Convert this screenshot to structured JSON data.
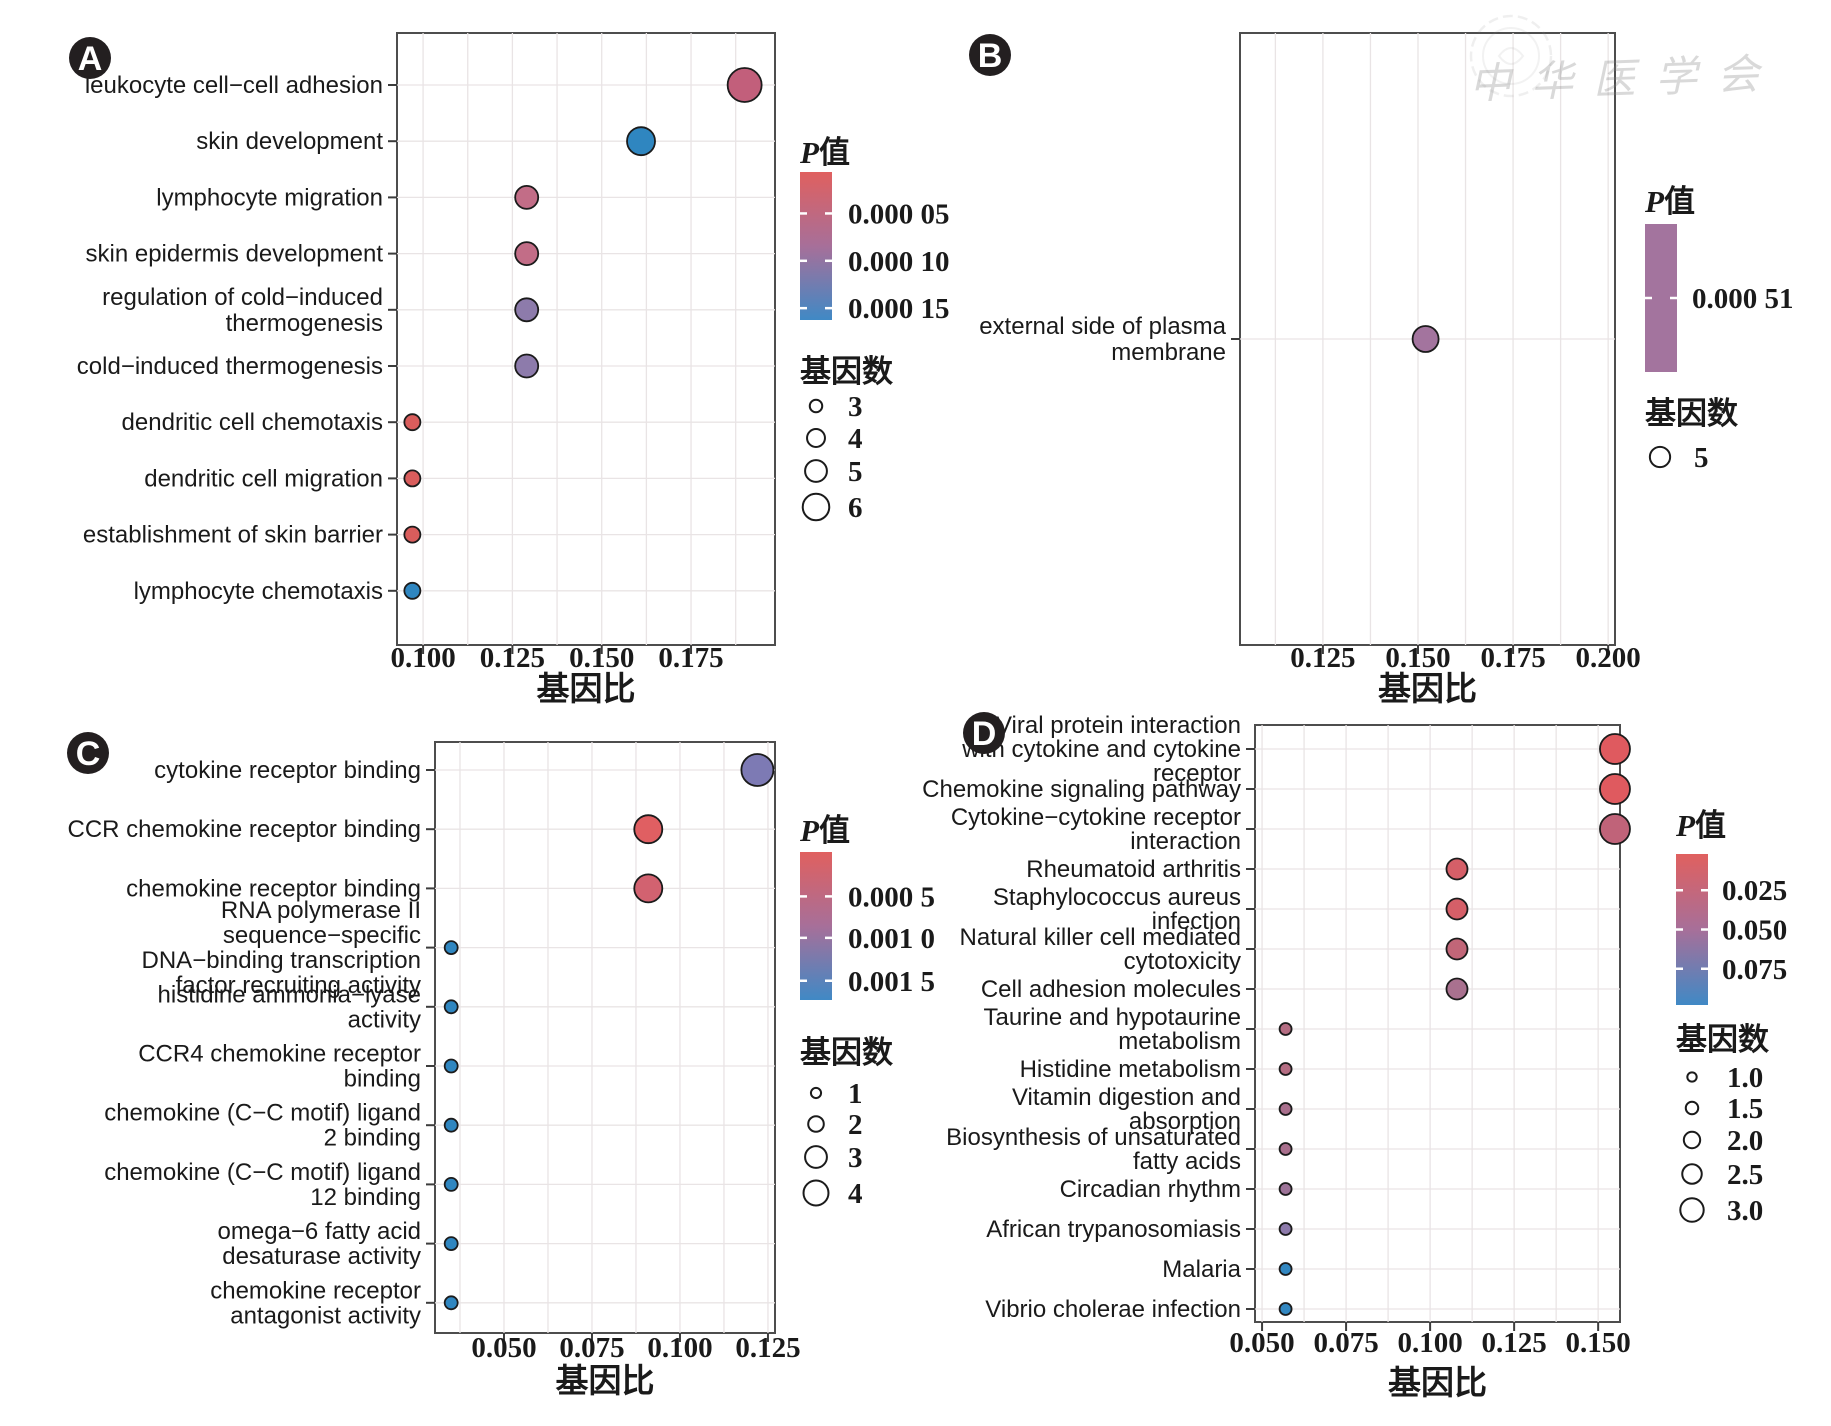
{
  "watermark": {
    "text": "中华医学会"
  },
  "chart_data": [
    {
      "panel": "A",
      "type": "scatter",
      "xlabel": "基因比",
      "xticks": [
        "0.100",
        "0.125",
        "0.150",
        "0.175"
      ],
      "xlim": [
        0.0927,
        0.1985
      ],
      "categories": [
        [
          "leukocyte cell−cell adhesion"
        ],
        [
          "skin development"
        ],
        [
          "lymphocyte migration"
        ],
        [
          "skin epidermis development"
        ],
        [
          "regulation of cold−induced",
          "thermogenesis"
        ],
        [
          "cold−induced thermogenesis"
        ],
        [
          "dendritic cell chemotaxis"
        ],
        [
          "dendritic cell migration"
        ],
        [
          "establishment of skin barrier"
        ],
        [
          "lymphocyte chemotaxis"
        ]
      ],
      "values": [
        0.19,
        0.161,
        0.129,
        0.129,
        0.129,
        0.129,
        0.097,
        0.097,
        0.097,
        0.097
      ],
      "sizes": [
        6,
        5,
        4,
        4,
        4,
        4,
        3,
        3,
        3,
        3
      ],
      "colors": [
        "#c25f7b",
        "#2f86c0",
        "#c26d87",
        "#c26d87",
        "#8d7bab",
        "#8d7bab",
        "#d95d5c",
        "#d95d5c",
        "#d95d5c",
        "#2f86c0"
      ],
      "legend": {
        "p_title": "P值",
        "p_labels": [
          "0.000 05",
          "0.000 10",
          "0.000 15"
        ],
        "size_title": "基因数",
        "size_labels": [
          "3",
          "4",
          "5",
          "6"
        ]
      }
    },
    {
      "panel": "B",
      "type": "scatter",
      "xlabel": "基因比",
      "xticks": [
        "0.125",
        "0.150",
        "0.175",
        "0.200"
      ],
      "xlim": [
        0.1032,
        0.2018
      ],
      "categories": [
        [
          "external side of plasma",
          "membrane"
        ]
      ],
      "values": [
        0.152
      ],
      "sizes": [
        5
      ],
      "colors": [
        "#a3749e"
      ],
      "legend": {
        "p_title": "P值",
        "p_labels": [
          "0.000 51"
        ],
        "bar_color": "#a3749e",
        "size_title": "基因数",
        "size_labels": [
          "5"
        ]
      }
    },
    {
      "panel": "C",
      "type": "scatter",
      "xlabel": "基因比",
      "xticks": [
        "0.050",
        "0.075",
        "0.100",
        "0.125"
      ],
      "xlim": [
        0.0304,
        0.127
      ],
      "categories": [
        [
          "cytokine receptor binding"
        ],
        [
          "CCR chemokine receptor binding"
        ],
        [
          "chemokine receptor binding"
        ],
        [
          "RNA polymerase II",
          "sequence−specific",
          "DNA−binding transcription",
          "factor recruiting activity"
        ],
        [
          "histidine ammonia−lyase",
          "activity"
        ],
        [
          "CCR4 chemokine receptor",
          "binding"
        ],
        [
          "chemokine (C−C motif) ligand",
          "2 binding"
        ],
        [
          "chemokine (C−C motif) ligand",
          "12 binding"
        ],
        [
          "omega−6 fatty acid",
          "desaturase activity"
        ],
        [
          "chemokine receptor",
          "antagonist activity"
        ]
      ],
      "values": [
        0.122,
        0.091,
        0.091,
        0.035,
        0.035,
        0.035,
        0.035,
        0.035,
        0.035,
        0.035
      ],
      "sizes": [
        4,
        3,
        3,
        1,
        1,
        1,
        1,
        1,
        1,
        1
      ],
      "colors": [
        "#7d7ab4",
        "#e05f62",
        "#d26270",
        "#2f86c0",
        "#2f86c0",
        "#2f86c0",
        "#2f86c0",
        "#2f86c0",
        "#2f86c0",
        "#2f86c0"
      ],
      "legend": {
        "p_title": "P值",
        "p_labels": [
          "0.000 5",
          "0.001 0",
          "0.001 5"
        ],
        "size_title": "基因数",
        "size_labels": [
          "1",
          "2",
          "3",
          "4"
        ]
      }
    },
    {
      "panel": "D",
      "type": "scatter",
      "xlabel": "基因比",
      "xticks": [
        "0.050",
        "0.075",
        "0.100",
        "0.125",
        "0.150"
      ],
      "xlim": [
        0.0479,
        0.1565
      ],
      "categories": [
        [
          "Viral protein interaction",
          "with cytokine and cytokine",
          "receptor"
        ],
        [
          "Chemokine signaling pathway"
        ],
        [
          "Cytokine−cytokine receptor",
          "interaction"
        ],
        [
          "Rheumatoid arthritis"
        ],
        [
          "Staphylococcus aureus",
          "infection"
        ],
        [
          "Natural killer cell mediated",
          "cytotoxicity"
        ],
        [
          "Cell adhesion molecules"
        ],
        [
          "Taurine and hypotaurine",
          "metabolism"
        ],
        [
          "Histidine metabolism"
        ],
        [
          "Vitamin digestion and",
          "absorption"
        ],
        [
          "Biosynthesis of unsaturated",
          "fatty acids"
        ],
        [
          "Circadian rhythm"
        ],
        [
          "African trypanosomiasis"
        ],
        [
          "Malaria"
        ],
        [
          "Vibrio cholerae infection"
        ]
      ],
      "values": [
        0.155,
        0.155,
        0.155,
        0.108,
        0.108,
        0.108,
        0.108,
        0.057,
        0.057,
        0.057,
        0.057,
        0.057,
        0.057,
        0.057,
        0.057
      ],
      "sizes": [
        3,
        3,
        3,
        2,
        2,
        2,
        2,
        1,
        1,
        1,
        1,
        1,
        1,
        1,
        1
      ],
      "colors": [
        "#df5a5f",
        "#df5a5f",
        "#c06379",
        "#d55f68",
        "#d55f68",
        "#c16678",
        "#a9718f",
        "#b56d83",
        "#b56d83",
        "#a96f8d",
        "#a96f8d",
        "#9d7398",
        "#8d7aab",
        "#3287c1",
        "#3287c1"
      ],
      "legend": {
        "p_title": "P值",
        "p_labels": [
          "0.025",
          "0.050",
          "0.075"
        ],
        "size_title": "基因数",
        "size_labels": [
          "1.0",
          "1.5",
          "2.0",
          "2.5",
          "3.0"
        ]
      }
    }
  ]
}
